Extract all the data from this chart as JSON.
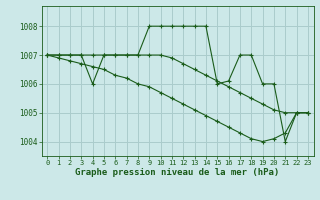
{
  "background_color": "#cce8e8",
  "grid_color": "#aacccc",
  "line_color": "#1a5c1a",
  "marker_color": "#1a5c1a",
  "xlabel": "Graphe pression niveau de la mer (hPa)",
  "xlabel_fontsize": 6.5,
  "xlim": [
    -0.5,
    23.5
  ],
  "ylim": [
    1003.5,
    1008.7
  ],
  "yticks": [
    1004,
    1005,
    1006,
    1007,
    1008
  ],
  "xticks": [
    0,
    1,
    2,
    3,
    4,
    5,
    6,
    7,
    8,
    9,
    10,
    11,
    12,
    13,
    14,
    15,
    16,
    17,
    18,
    19,
    20,
    21,
    22,
    23
  ],
  "series": [
    [
      1007.0,
      1007.0,
      1007.0,
      1007.0,
      1006.0,
      1007.0,
      1007.0,
      1007.0,
      1007.0,
      1008.0,
      1008.0,
      1008.0,
      1008.0,
      1008.0,
      1008.0,
      1006.0,
      1006.1,
      1007.0,
      1007.0,
      1006.0,
      1006.0,
      1004.0,
      1005.0,
      1005.0
    ],
    [
      1007.0,
      1007.0,
      1007.0,
      1007.0,
      1007.0,
      1007.0,
      1007.0,
      1007.0,
      1007.0,
      1007.0,
      1007.0,
      1006.9,
      1006.7,
      1006.5,
      1006.3,
      1006.1,
      1005.9,
      1005.7,
      1005.5,
      1005.3,
      1005.1,
      1005.0,
      1005.0,
      1005.0
    ],
    [
      1007.0,
      1006.9,
      1006.8,
      1006.7,
      1006.6,
      1006.5,
      1006.3,
      1006.2,
      1006.0,
      1005.9,
      1005.7,
      1005.5,
      1005.3,
      1005.1,
      1004.9,
      1004.7,
      1004.5,
      1004.3,
      1004.1,
      1004.0,
      1004.1,
      1004.3,
      1005.0,
      1005.0
    ]
  ]
}
